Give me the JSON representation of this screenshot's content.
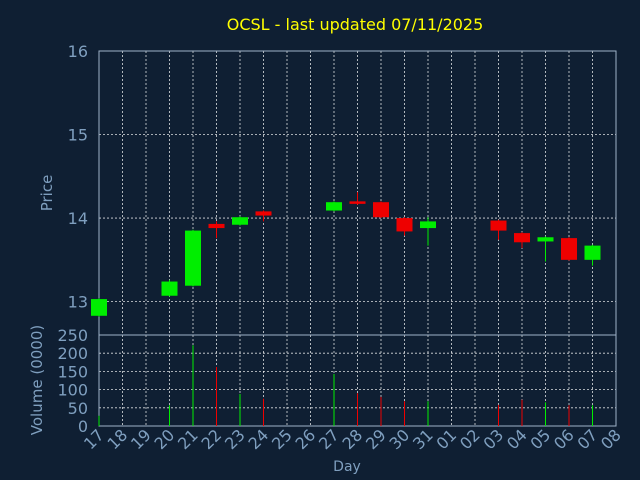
{
  "chart_data": [
    {
      "type": "candlestick",
      "title": "OCSL - last updated 07/11/2025",
      "ylabel": "Price",
      "ylim": [
        12.6,
        16.0
      ],
      "yticks": [
        "13",
        "14",
        "15",
        "16"
      ],
      "ytick_values": [
        13,
        14,
        15,
        16
      ],
      "grid": true,
      "up_color": "#00ee00",
      "down_color": "#ee0000",
      "candles": [
        {
          "x": "17",
          "open": 12.83,
          "close": 13.03,
          "high": 13.04,
          "low": 12.82
        },
        {
          "x": "20",
          "open": 13.07,
          "close": 13.24,
          "high": 13.26,
          "low": 13.06
        },
        {
          "x": "21",
          "open": 13.19,
          "close": 13.85,
          "high": 13.86,
          "low": 13.18
        },
        {
          "x": "22",
          "open": 13.93,
          "close": 13.88,
          "high": 13.96,
          "low": 13.76
        },
        {
          "x": "23",
          "open": 13.92,
          "close": 14.01,
          "high": 14.02,
          "low": 13.91
        },
        {
          "x": "24",
          "open": 14.08,
          "close": 14.03,
          "high": 14.09,
          "low": 13.96
        },
        {
          "x": "27",
          "open": 14.09,
          "close": 14.19,
          "high": 14.2,
          "low": 14.08
        },
        {
          "x": "28",
          "open": 14.2,
          "close": 14.17,
          "high": 14.31,
          "low": 14.16
        },
        {
          "x": "29",
          "open": 14.19,
          "close": 14.01,
          "high": 14.2,
          "low": 14.0
        },
        {
          "x": "30",
          "open": 14.0,
          "close": 13.84,
          "high": 14.01,
          "low": 13.79
        },
        {
          "x": "31",
          "open": 13.88,
          "close": 13.96,
          "high": 14.01,
          "low": 13.67
        },
        {
          "x": "03",
          "open": 13.97,
          "close": 13.85,
          "high": 13.98,
          "low": 13.74
        },
        {
          "x": "04",
          "open": 13.82,
          "close": 13.71,
          "high": 13.83,
          "low": 13.64
        },
        {
          "x": "05",
          "open": 13.72,
          "close": 13.77,
          "high": 13.78,
          "low": 13.48
        },
        {
          "x": "06",
          "open": 13.76,
          "close": 13.5,
          "high": 13.77,
          "low": 13.49
        },
        {
          "x": "07",
          "open": 13.5,
          "close": 13.67,
          "high": 13.68,
          "low": 13.43
        }
      ]
    },
    {
      "type": "bar",
      "ylabel": "Volume (0000)",
      "xlabel": "Day",
      "ylim": [
        0,
        250
      ],
      "yticks": [
        "0",
        "50",
        "100",
        "150",
        "200",
        "250"
      ],
      "ytick_values": [
        0,
        50,
        100,
        150,
        200,
        250
      ],
      "grid": true,
      "x": [
        "17",
        "18",
        "19",
        "20",
        "21",
        "22",
        "23",
        "24",
        "25",
        "26",
        "27",
        "28",
        "29",
        "30",
        "31",
        "01",
        "02",
        "03",
        "04",
        "05",
        "06",
        "07",
        "08"
      ],
      "bars": [
        {
          "x": "17",
          "value": 28,
          "color": "#00ee00"
        },
        {
          "x": "20",
          "value": 57,
          "color": "#00ee00"
        },
        {
          "x": "21",
          "value": 222,
          "color": "#00ee00"
        },
        {
          "x": "22",
          "value": 162,
          "color": "#ee0000"
        },
        {
          "x": "23",
          "value": 88,
          "color": "#00ee00"
        },
        {
          "x": "24",
          "value": 75,
          "color": "#ee0000"
        },
        {
          "x": "27",
          "value": 143,
          "color": "#00ee00"
        },
        {
          "x": "28",
          "value": 90,
          "color": "#ee0000"
        },
        {
          "x": "29",
          "value": 80,
          "color": "#ee0000"
        },
        {
          "x": "30",
          "value": 68,
          "color": "#ee0000"
        },
        {
          "x": "31",
          "value": 68,
          "color": "#00ee00"
        },
        {
          "x": "03",
          "value": 58,
          "color": "#ee0000"
        },
        {
          "x": "04",
          "value": 72,
          "color": "#ee0000"
        },
        {
          "x": "05",
          "value": 65,
          "color": "#00ee00"
        },
        {
          "x": "06",
          "value": 57,
          "color": "#ee0000"
        },
        {
          "x": "07",
          "value": 57,
          "color": "#00ee00"
        }
      ]
    }
  ],
  "colors": {
    "background": "#0f1f33",
    "title": "#ffff00",
    "axis_text": "#7f9fbf",
    "grid": "#ffffff"
  }
}
